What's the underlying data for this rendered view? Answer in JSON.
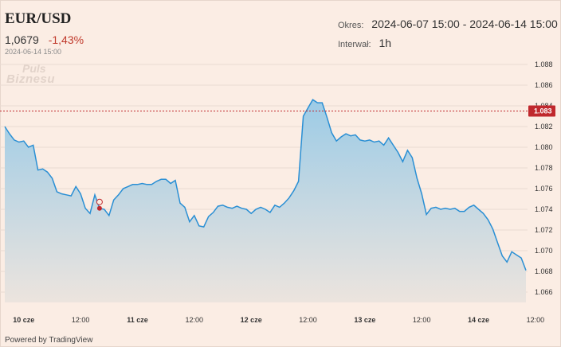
{
  "header": {
    "symbol": "EUR/USD",
    "price": "1,0679",
    "change": "-1,43%",
    "timestamp": "2024-06-14 15:00",
    "logo_line1": "Puls",
    "logo_line2": "Biznesu",
    "period_label": "Okres:",
    "period_value": "2024-06-07 15:00 - 2024-06-14 15:00",
    "interval_label": "Interwał:",
    "interval_value": "1h"
  },
  "footer": {
    "powered_by": "Powered by TradingView"
  },
  "colors": {
    "line": "#2a8fd4",
    "area_top": "#9ccbe6",
    "area_bottom": "#ece4de",
    "price_tag": "#c0282d",
    "marker": "#c0282d",
    "background": "#fbede4"
  },
  "chart_data": {
    "type": "area",
    "x_tick_labels": [
      "10 cze",
      "12:00",
      "11 cze",
      "12:00",
      "12 cze",
      "12:00",
      "13 cze",
      "12:00",
      "14 cze",
      "12:00"
    ],
    "x_tick_is_day": [
      true,
      false,
      true,
      false,
      true,
      false,
      true,
      false,
      true,
      false
    ],
    "y_ticks": [
      "1.066",
      "1.068",
      "1.070",
      "1.072",
      "1.074",
      "1.076",
      "1.078",
      "1.080",
      "1.082",
      "1.084",
      "1.086",
      "1.088"
    ],
    "ylim": [
      1.065,
      1.089
    ],
    "current_price_label": "1.083",
    "current_price_value": 1.0835,
    "event_marker_index": 20,
    "values": [
      1.082,
      1.0813,
      1.0807,
      1.0805,
      1.0806,
      1.08,
      1.0802,
      1.0778,
      1.0779,
      1.0776,
      1.077,
      1.0757,
      1.0755,
      1.0754,
      1.0753,
      1.0762,
      1.0755,
      1.0741,
      1.0736,
      1.0754,
      1.0741,
      1.074,
      1.0734,
      1.0749,
      1.0754,
      1.076,
      1.0762,
      1.0764,
      1.0764,
      1.0765,
      1.0764,
      1.0764,
      1.0767,
      1.0769,
      1.0769,
      1.0765,
      1.0768,
      1.0746,
      1.0742,
      1.0728,
      1.0734,
      1.0724,
      1.0723,
      1.0733,
      1.0737,
      1.0743,
      1.0744,
      1.0742,
      1.0741,
      1.0743,
      1.0741,
      1.074,
      1.0736,
      1.074,
      1.0742,
      1.074,
      1.0737,
      1.0744,
      1.0742,
      1.0746,
      1.0751,
      1.0758,
      1.0767,
      1.083,
      1.0838,
      1.0846,
      1.0843,
      1.0843,
      1.0829,
      1.0814,
      1.0806,
      1.081,
      1.0813,
      1.0811,
      1.0812,
      1.0807,
      1.0806,
      1.0807,
      1.0805,
      1.0806,
      1.0802,
      1.0809,
      1.0802,
      1.0795,
      1.0786,
      1.0797,
      1.079,
      1.077,
      1.0755,
      1.0735,
      1.0741,
      1.0742,
      1.074,
      1.0741,
      1.074,
      1.0741,
      1.0738,
      1.0738,
      1.0742,
      1.0744,
      1.074,
      1.0736,
      1.073,
      1.0721,
      1.0708,
      1.0695,
      1.0689,
      1.0699,
      1.0696,
      1.0693,
      1.0681
    ]
  }
}
